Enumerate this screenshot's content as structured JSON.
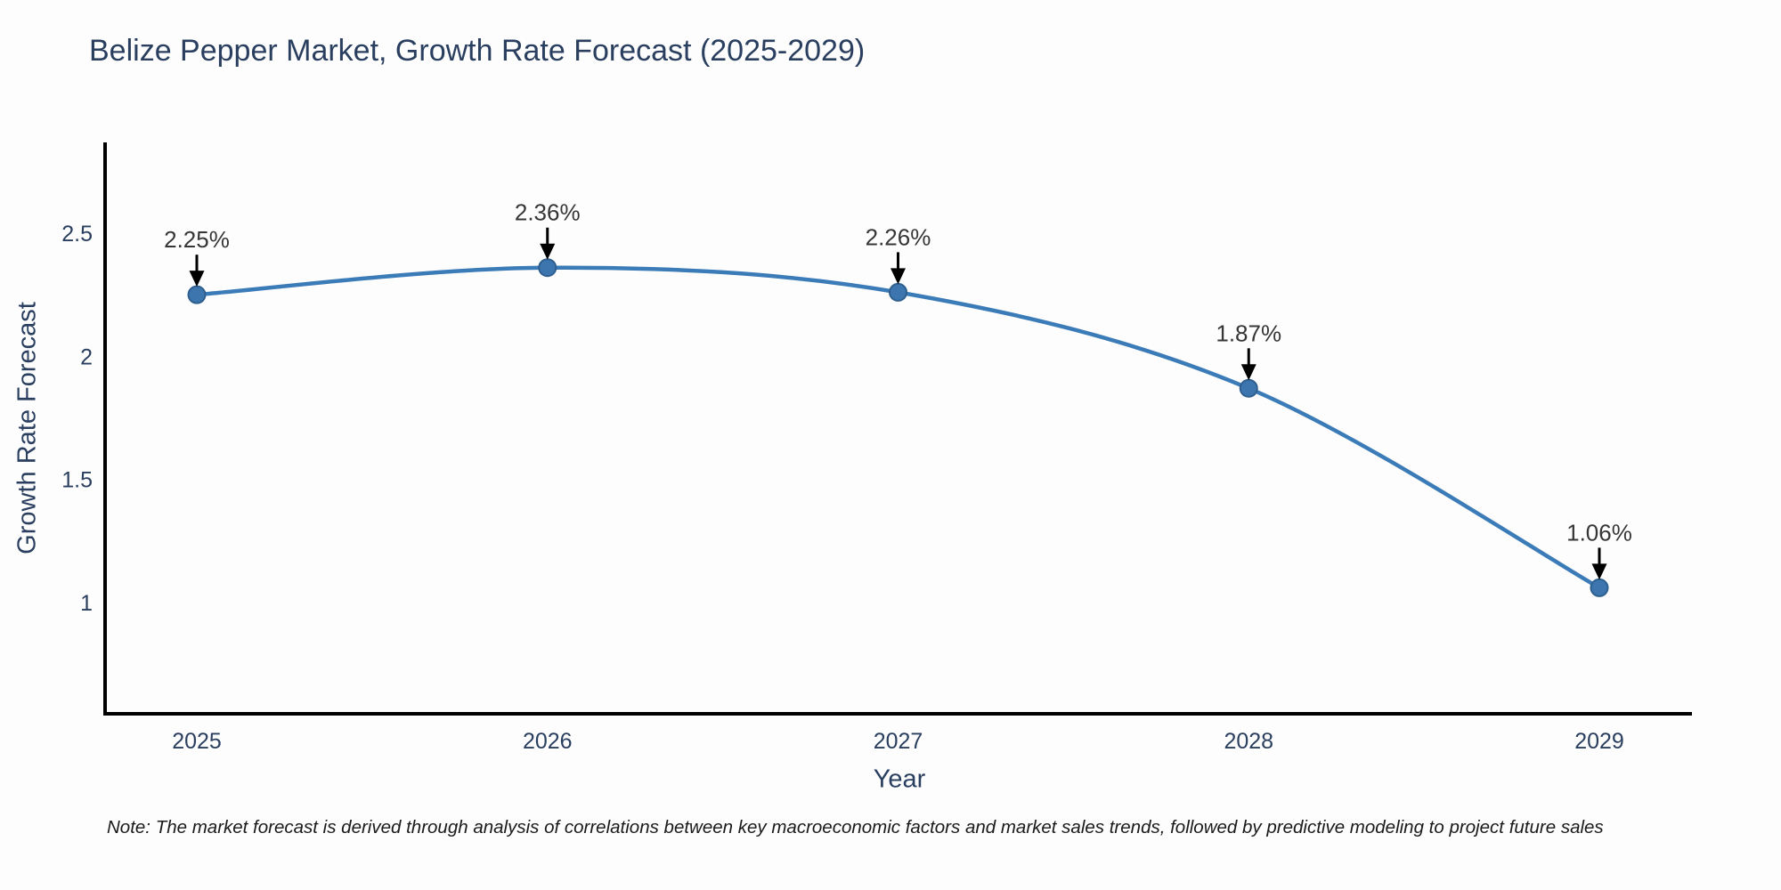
{
  "title": "Belize Pepper Market, Growth Rate Forecast (2025-2029)",
  "note": "Note: The market forecast is derived through analysis of correlations between key macroeconomic factors and market sales trends, followed by predictive modeling to project future sales",
  "chart_data": {
    "type": "line",
    "title": "Belize Pepper Market, Growth Rate Forecast (2025-2029)",
    "x": [
      2025,
      2026,
      2027,
      2028,
      2029
    ],
    "series": [
      {
        "name": "Growth Rate Forecast",
        "values": [
          2.25,
          2.36,
          2.26,
          1.87,
          1.06
        ]
      }
    ],
    "point_labels": [
      "2.25%",
      "2.36%",
      "2.26%",
      "1.87%",
      "1.06%"
    ],
    "xlabel": "Year",
    "ylabel": "Growth Rate Forecast",
    "yticks": [
      1,
      1.5,
      2,
      2.5
    ],
    "ylim": [
      0.55,
      2.87
    ],
    "grid": false,
    "legend": "none",
    "curve": "spline",
    "line_color": "#3b7cb8",
    "marker_color": "#3d76ae",
    "marker_edge_color": "#2e5f8f",
    "axis_color": "#000000",
    "arrow_color": "#000000",
    "text_color": "#2a3f5f"
  }
}
